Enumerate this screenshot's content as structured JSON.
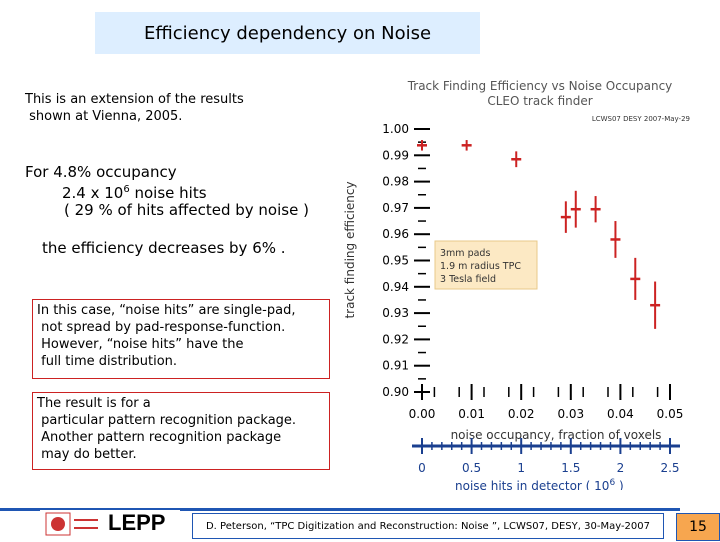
{
  "slide": {
    "title": "Efficiency dependency on Noise",
    "intro_line1": "This is an extension of the results",
    "intro_line2": " shown at Vienna, 2005.",
    "occ_line1": "For 4.8% occupancy",
    "occ_line2_pre": "2.4 x 10",
    "occ_line2_sup": "6",
    "occ_line2_post": " noise hits",
    "occ_line3": "( 29 % of hits affected by noise )",
    "eff_line": "the efficiency decreases by 6% .",
    "box1": "In this case, “noise hits” are single-pad,\n not spread by pad-response-function.\n However, “noise hits” have the\n full time distribution.",
    "box2": "The result is for a\n particular pattern recognition package.\n Another pattern recognition package\n may do better.",
    "footer": "D. Peterson, “TPC Digitization and Reconstruction: Noise ”, LCWS07, DESY, 30-May-2007",
    "page_number": "15",
    "logo_text": "LEPP"
  },
  "chart_data": {
    "type": "scatter",
    "title": "Track Finding Efficiency vs Noise Occupancy",
    "subtitle": "CLEO track finder",
    "tag": "LCWS07 DESY 2007-May-29",
    "xlabel": "noise occupancy, fraction of voxels",
    "ylabel": "track finding efficiency",
    "xlim": [
      0.0,
      0.05
    ],
    "ylim": [
      0.9,
      1.0
    ],
    "xticks": [
      "0.00",
      "0.01",
      "0.02",
      "0.03",
      "0.04",
      "0.05"
    ],
    "yticks": [
      "0.90",
      "0.91",
      "0.92",
      "0.93",
      "0.94",
      "0.95",
      "0.96",
      "0.97",
      "0.98",
      "0.99",
      "1.00"
    ],
    "points": [
      {
        "x": 0.0,
        "y": 0.9938,
        "err": 0.002
      },
      {
        "x": 0.009,
        "y": 0.9938,
        "err": 0.002
      },
      {
        "x": 0.019,
        "y": 0.9885,
        "err": 0.003
      },
      {
        "x": 0.029,
        "y": 0.9665,
        "err": 0.006
      },
      {
        "x": 0.031,
        "y": 0.9695,
        "err": 0.007
      },
      {
        "x": 0.035,
        "y": 0.9695,
        "err": 0.005
      },
      {
        "x": 0.039,
        "y": 0.958,
        "err": 0.007
      },
      {
        "x": 0.043,
        "y": 0.943,
        "err": 0.008
      },
      {
        "x": 0.047,
        "y": 0.933,
        "err": 0.009
      }
    ],
    "legend": [
      "3mm pads",
      "1.9 m radius TPC",
      "3 Tesla field"
    ],
    "legend_position": "center-right",
    "secondary_axis": {
      "label_pre": "noise hits in detector ( 10",
      "label_sup": "6",
      "label_post": " )",
      "ticks": [
        "0",
        "0.5",
        "1",
        "1.5",
        "2",
        "2.5"
      ]
    },
    "colors": {
      "points": "#cc2222",
      "axis": "#1a3f8f",
      "legend_bg": "#fce9c4"
    }
  }
}
